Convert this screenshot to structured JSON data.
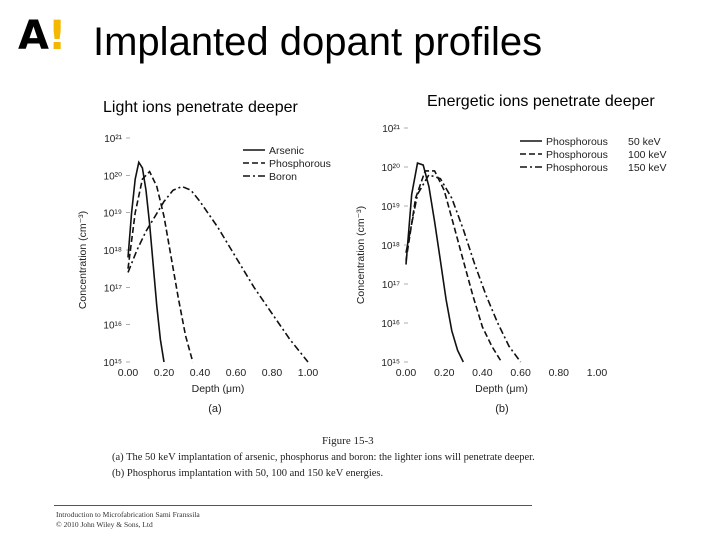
{
  "logo": {
    "letter": "A",
    "mark": "!"
  },
  "title": "Implanted dopant profiles",
  "subtitle_left": "Light ions penetrate deeper",
  "subtitle_right": "Energetic ions penetrate deeper",
  "legend_right_energies": [
    "50 keV",
    "100 keV",
    "150 keV"
  ],
  "caption": {
    "figure": "Figure 15-3",
    "line_a": "(a) The 50 keV implantation of arsenic, phosphorus and boron: the lighter ions will penetrate deeper.",
    "line_b": "(b) Phosphorus implantation with 50, 100 and 150 keV energies."
  },
  "footer": {
    "line1": "Introduction to Microfabrication Sami Franssila",
    "line2": "© 2010 John Wiley & Sons, Ltd"
  },
  "chart_data": [
    {
      "type": "line",
      "panel_label": "(a)",
      "xlabel": "Depth (μm)",
      "ylabel": "Concentration (cm⁻³)",
      "xlim": [
        0,
        1.0
      ],
      "ylim_log10": [
        15,
        21
      ],
      "x_ticks": [
        "0.00",
        "0.20",
        "0.40",
        "0.60",
        "0.80",
        "1.00"
      ],
      "y_ticks": [
        "10¹⁵",
        "10¹⁶",
        "10¹⁷",
        "10¹⁸",
        "10¹⁹",
        "10²⁰",
        "10²¹"
      ],
      "legend_position": "top-right",
      "series": [
        {
          "name": "Arsenic",
          "dash": "solid",
          "x": [
            0.0,
            0.02,
            0.04,
            0.06,
            0.08,
            0.1,
            0.12,
            0.14,
            0.16,
            0.18,
            0.2
          ],
          "log10_y": [
            17.8,
            19.0,
            19.9,
            20.35,
            20.2,
            19.6,
            18.7,
            17.6,
            16.5,
            15.6,
            15.0
          ]
        },
        {
          "name": "Phosphorous",
          "dash": "dashed",
          "x": [
            0.0,
            0.04,
            0.08,
            0.12,
            0.16,
            0.2,
            0.24,
            0.28,
            0.32,
            0.36
          ],
          "log10_y": [
            17.5,
            19.0,
            19.9,
            20.1,
            19.7,
            18.9,
            17.8,
            16.7,
            15.7,
            15.0
          ]
        },
        {
          "name": "Boron",
          "dash": "dash-dot",
          "x": [
            0.0,
            0.05,
            0.1,
            0.15,
            0.2,
            0.25,
            0.3,
            0.35,
            0.4,
            0.5,
            0.6,
            0.7,
            0.8,
            0.9,
            1.0
          ],
          "log10_y": [
            17.4,
            18.0,
            18.5,
            18.9,
            19.3,
            19.6,
            19.7,
            19.6,
            19.3,
            18.6,
            17.8,
            17.0,
            16.3,
            15.6,
            15.0
          ]
        }
      ]
    },
    {
      "type": "line",
      "panel_label": "(b)",
      "xlabel": "Depth (μm)",
      "ylabel": "Concentration (cm⁻³)",
      "xlim": [
        0,
        1.0
      ],
      "ylim_log10": [
        15,
        21
      ],
      "x_ticks": [
        "0.00",
        "0.20",
        "0.40",
        "0.60",
        "0.80",
        "1.00"
      ],
      "y_ticks": [
        "10¹⁵",
        "10¹⁶",
        "10¹⁷",
        "10¹⁸",
        "10¹⁹",
        "10²⁰",
        "10²¹"
      ],
      "legend_position": "top-right",
      "series": [
        {
          "name": "Phosphorous",
          "energy": "50 keV",
          "dash": "solid",
          "x": [
            0.0,
            0.03,
            0.06,
            0.09,
            0.12,
            0.15,
            0.18,
            0.21,
            0.24,
            0.27,
            0.3
          ],
          "log10_y": [
            17.5,
            19.3,
            20.1,
            20.05,
            19.5,
            18.6,
            17.6,
            16.6,
            15.8,
            15.3,
            15.0
          ]
        },
        {
          "name": "Phosphorous",
          "energy": "100 keV",
          "dash": "dashed",
          "x": [
            0.0,
            0.05,
            0.1,
            0.15,
            0.2,
            0.25,
            0.3,
            0.35,
            0.4,
            0.45,
            0.5
          ],
          "log10_y": [
            17.6,
            19.2,
            19.9,
            19.9,
            19.4,
            18.5,
            17.6,
            16.7,
            15.9,
            15.4,
            15.0
          ]
        },
        {
          "name": "Phosphorous",
          "energy": "150 keV",
          "dash": "dash-dot",
          "x": [
            0.0,
            0.06,
            0.12,
            0.18,
            0.24,
            0.3,
            0.36,
            0.42,
            0.48,
            0.54,
            0.6
          ],
          "log10_y": [
            17.8,
            19.3,
            19.8,
            19.7,
            19.2,
            18.4,
            17.5,
            16.7,
            16.0,
            15.4,
            15.0
          ]
        }
      ]
    }
  ]
}
